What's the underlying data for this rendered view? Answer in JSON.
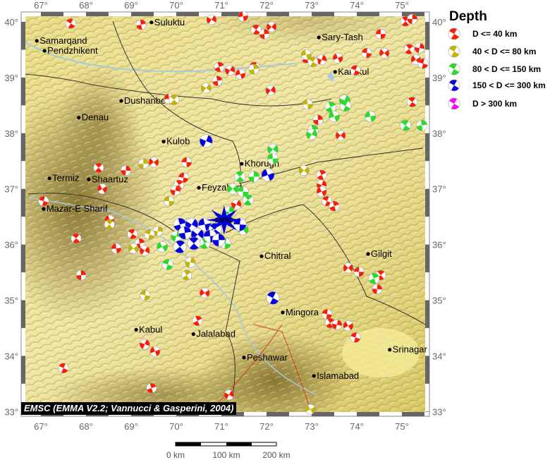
{
  "map": {
    "lon_range": [
      66.56,
      75.6
    ],
    "lat_range": [
      32.91,
      40.18
    ],
    "lon_ticks": [
      67,
      68,
      69,
      70,
      71,
      72,
      73,
      74,
      75
    ],
    "lat_ticks": [
      33,
      34,
      35,
      36,
      37,
      38,
      39,
      40
    ],
    "tick_suffix": "°",
    "relief_colors": {
      "high": "#f3eaa0",
      "mid": "#c9b54a",
      "low": "#7d6a2a"
    },
    "water_color": "#aac8e0",
    "border_color": "#333333",
    "fault_color": "#d04020"
  },
  "legend": {
    "title": "Depth",
    "items": [
      {
        "label": "D <= 40 km",
        "color": "#ff1a00"
      },
      {
        "label": "40 < D <= 80 km",
        "color": "#c8b400"
      },
      {
        "label": "80 < D <= 150 km",
        "color": "#22e022"
      },
      {
        "label": "150 < D <= 300 km",
        "color": "#0000e0"
      },
      {
        "label": "D > 300 km",
        "color": "#ff00ff"
      }
    ]
  },
  "cities": [
    {
      "name": "Suluktu",
      "lon": 69.45,
      "lat": 39.99
    },
    {
      "name": "Samarqand",
      "lon": 66.91,
      "lat": 39.66
    },
    {
      "name": "Pendzhikent",
      "lon": 67.08,
      "lat": 39.48
    },
    {
      "name": "Sary-Tash",
      "lon": 73.16,
      "lat": 39.72
    },
    {
      "name": "Karakul",
      "lon": 73.52,
      "lat": 39.1
    },
    {
      "name": "Dushanbe",
      "lon": 68.78,
      "lat": 38.58
    },
    {
      "name": "Denau",
      "lon": 67.84,
      "lat": 38.28
    },
    {
      "name": "Kulob",
      "lon": 69.72,
      "lat": 37.85
    },
    {
      "name": "Khorugh",
      "lon": 71.45,
      "lat": 37.45
    },
    {
      "name": "Termiz",
      "lon": 67.19,
      "lat": 37.19
    },
    {
      "name": "Shaartuz",
      "lon": 68.06,
      "lat": 37.17
    },
    {
      "name": "Feyzabad",
      "lon": 70.5,
      "lat": 37.02
    },
    {
      "name": "Mazar-E Sharif",
      "lon": 67.06,
      "lat": 36.64
    },
    {
      "name": "Chitral",
      "lon": 71.89,
      "lat": 35.79
    },
    {
      "name": "Gilgit",
      "lon": 74.25,
      "lat": 35.83
    },
    {
      "name": "Mingora",
      "lon": 72.36,
      "lat": 34.78
    },
    {
      "name": "Kabul",
      "lon": 69.11,
      "lat": 34.47
    },
    {
      "name": "Jalalabad",
      "lon": 70.38,
      "lat": 34.39
    },
    {
      "name": "Peshawar",
      "lon": 71.5,
      "lat": 33.97
    },
    {
      "name": "Srinagar",
      "lon": 74.73,
      "lat": 34.11
    },
    {
      "name": "Islamabad",
      "lon": 73.05,
      "lat": 33.64
    }
  ],
  "main_event": {
    "label": "EMSC",
    "lon": 71.06,
    "lat": 36.44,
    "color": "#0000e0"
  },
  "events": [
    [
      67.66,
      39.97,
      0
    ],
    [
      69.22,
      39.95,
      0
    ],
    [
      70.78,
      40.04,
      0
    ],
    [
      71.48,
      40.1,
      0
    ],
    [
      71.77,
      39.86,
      0
    ],
    [
      71.95,
      39.78,
      0
    ],
    [
      72.11,
      39.91,
      0
    ],
    [
      74.53,
      39.78,
      0
    ],
    [
      75.08,
      40.01,
      0
    ],
    [
      75.23,
      40.05,
      0
    ],
    [
      74.61,
      39.44,
      0
    ],
    [
      74.22,
      39.44,
      0
    ],
    [
      75.16,
      39.51,
      0
    ],
    [
      75.39,
      39.53,
      0
    ],
    [
      75.31,
      39.32,
      0
    ],
    [
      75.47,
      39.25,
      0
    ],
    [
      72.88,
      39.35,
      0
    ],
    [
      73.22,
      39.32,
      0
    ],
    [
      73.58,
      39.35,
      0
    ],
    [
      73.97,
      39.13,
      0
    ],
    [
      70.95,
      39.19,
      0
    ],
    [
      71.19,
      39.13,
      0
    ],
    [
      71.42,
      39.06,
      0
    ],
    [
      71.73,
      39.19,
      0
    ],
    [
      70.91,
      38.94,
      0
    ],
    [
      72.09,
      38.77,
      0
    ],
    [
      69.84,
      38.62,
      0
    ],
    [
      75.23,
      38.56,
      0
    ],
    [
      73.14,
      38.24,
      0
    ],
    [
      73.64,
      37.96,
      0
    ],
    [
      70.23,
      37.48,
      0
    ],
    [
      68.28,
      37.38,
      0
    ],
    [
      68.88,
      37.33,
      0
    ],
    [
      69.5,
      37.48,
      0
    ],
    [
      70.16,
      37.2,
      0
    ],
    [
      70.06,
      37.07,
      0
    ],
    [
      69.98,
      36.97,
      0
    ],
    [
      68.36,
      37.0,
      0
    ],
    [
      67.06,
      36.78,
      0
    ],
    [
      73.22,
      37.25,
      0
    ],
    [
      73.22,
      37.07,
      0
    ],
    [
      73.22,
      36.95,
      0
    ],
    [
      73.34,
      36.78,
      0
    ],
    [
      73.5,
      36.69,
      0
    ],
    [
      71.33,
      36.72,
      0
    ],
    [
      68.52,
      36.44,
      0
    ],
    [
      69.03,
      36.19,
      0
    ],
    [
      69.19,
      36.02,
      0
    ],
    [
      69.3,
      35.89,
      0
    ],
    [
      68.67,
      35.93,
      0
    ],
    [
      67.78,
      36.11,
      0
    ],
    [
      67.89,
      35.45,
      0
    ],
    [
      73.81,
      35.58,
      0
    ],
    [
      74.05,
      35.51,
      0
    ],
    [
      74.53,
      35.45,
      0
    ],
    [
      74.45,
      35.2,
      0
    ],
    [
      70.63,
      35.13,
      0
    ],
    [
      73.34,
      34.75,
      0
    ],
    [
      73.41,
      34.59,
      0
    ],
    [
      73.56,
      34.56,
      0
    ],
    [
      73.81,
      34.54,
      0
    ],
    [
      73.97,
      34.33,
      0
    ],
    [
      70.47,
      34.63,
      0
    ],
    [
      69.3,
      34.21,
      0
    ],
    [
      69.53,
      34.08,
      0
    ],
    [
      67.5,
      33.78,
      0
    ],
    [
      69.45,
      33.42,
      0
    ],
    [
      71.17,
      33.3,
      0
    ],
    [
      72.88,
      39.41,
      1
    ],
    [
      73.03,
      39.28,
      1
    ],
    [
      71.72,
      39.15,
      1
    ],
    [
      70.66,
      38.81,
      1
    ],
    [
      72.91,
      38.52,
      1
    ],
    [
      69.95,
      38.6,
      1
    ],
    [
      69.27,
      37.45,
      1
    ],
    [
      72.83,
      37.33,
      1
    ],
    [
      69.84,
      36.78,
      1
    ],
    [
      68.52,
      36.36,
      1
    ],
    [
      69.59,
      36.24,
      1
    ],
    [
      69.05,
      35.93,
      1
    ],
    [
      69.31,
      35.09,
      1
    ],
    [
      70.23,
      35.45,
      1
    ],
    [
      70.31,
      35.68,
      1
    ],
    [
      72.97,
      33.04,
      1
    ],
    [
      69.41,
      36.18,
      1
    ],
    [
      73.42,
      38.47,
      2
    ],
    [
      73.73,
      38.59,
      2
    ],
    [
      73.5,
      38.3,
      2
    ],
    [
      73.75,
      38.49,
      2
    ],
    [
      73.03,
      38.05,
      2
    ],
    [
      73.0,
      37.98,
      2
    ],
    [
      74.3,
      38.3,
      2
    ],
    [
      75.08,
      38.14,
      2
    ],
    [
      75.44,
      38.14,
      2
    ],
    [
      72.14,
      37.71,
      2
    ],
    [
      72.14,
      37.54,
      2
    ],
    [
      71.41,
      37.22,
      2
    ],
    [
      71.72,
      37.22,
      2
    ],
    [
      71.25,
      37.0,
      2
    ],
    [
      71.48,
      36.95,
      2
    ],
    [
      71.59,
      36.8,
      2
    ],
    [
      71.17,
      36.59,
      2
    ],
    [
      71.48,
      36.27,
      2
    ],
    [
      71.09,
      36.02,
      2
    ],
    [
      70.63,
      36.02,
      2
    ],
    [
      70.0,
      36.15,
      2
    ],
    [
      69.69,
      35.96,
      2
    ],
    [
      69.81,
      35.64,
      2
    ],
    [
      74.38,
      35.39,
      2
    ],
    [
      70.66,
      37.86,
      3
    ],
    [
      72.03,
      37.25,
      3
    ],
    [
      72.14,
      35.04,
      3
    ],
    [
      70.08,
      36.36,
      3
    ],
    [
      70.34,
      36.36,
      3
    ],
    [
      70.63,
      36.36,
      3
    ],
    [
      70.86,
      36.27,
      3
    ],
    [
      70.19,
      36.21,
      3
    ],
    [
      70.47,
      36.18,
      3
    ],
    [
      70.75,
      36.15,
      3
    ],
    [
      70.39,
      36.02,
      3
    ],
    [
      70.94,
      36.08,
      3
    ],
    [
      71.09,
      36.44,
      3
    ],
    [
      71.41,
      36.36,
      3
    ],
    [
      70.08,
      35.96,
      3
    ]
  ],
  "credit": "EMSC (EMMA V2.2; Vannucci & Gasperini, 2004)",
  "scale_bar": {
    "labels": [
      "0 km",
      "100 km",
      "200 km"
    ]
  }
}
